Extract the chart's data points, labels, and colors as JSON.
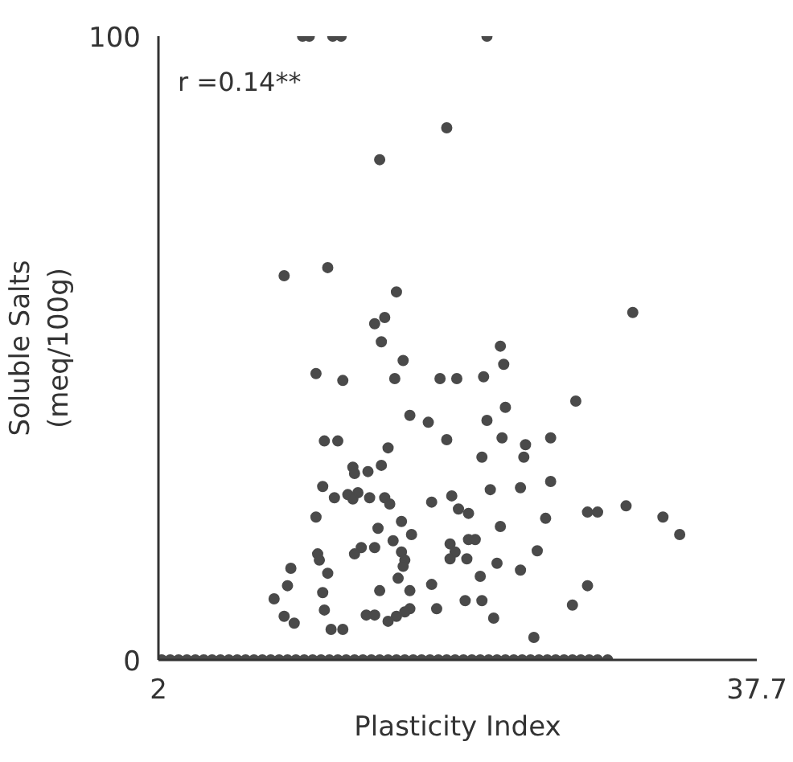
{
  "chart_data": {
    "type": "scatter",
    "xlabel": "Plasticity Index",
    "ylabel": "Soluble Salts\n(meq/100g)",
    "annotations": [
      "r =0.14**"
    ],
    "xlim": [
      2,
      37.7
    ],
    "ylim": [
      0,
      100
    ],
    "xticks": [
      2,
      37.7
    ],
    "yticks": [
      0,
      100
    ],
    "marker": "circle",
    "series": [
      {
        "color": "#4a4a4a",
        "x": [
          10.6,
          11.0,
          12.4,
          12.9,
          21.6,
          19.2,
          15.2,
          9.5,
          12.1,
          16.2,
          14.9,
          15.5,
          30.3,
          15.3,
          22.4,
          16.6,
          22.6,
          11.4,
          13.0,
          16.1,
          18.8,
          19.8,
          21.4,
          26.9,
          17.0,
          18.1,
          21.6,
          22.7,
          19.2,
          22.5,
          23.9,
          25.4,
          11.9,
          12.7,
          15.7,
          21.3,
          23.8,
          13.6,
          14.5,
          15.3,
          13.7,
          11.8,
          25.4,
          21.8,
          23.6,
          12.5,
          13.3,
          13.9,
          13.6,
          14.6,
          15.5,
          15.8,
          18.3,
          19.5,
          19.9,
          20.5,
          11.4,
          16.5,
          15.1,
          17.1,
          22.4,
          25.1,
          27.6,
          28.2,
          29.9,
          32.1,
          33.1,
          20.5,
          20.9,
          16.0,
          14.9,
          14.1,
          13.7,
          16.5,
          19.4,
          19.7,
          11.5,
          11.6,
          16.7,
          16.6,
          19.4,
          20.4,
          24.6,
          22.2,
          9.9,
          12.1,
          23.6,
          21.2,
          16.3,
          9.7,
          18.3,
          27.6,
          11.8,
          15.2,
          17.0,
          8.9,
          20.3,
          21.3,
          11.9,
          17.0,
          18.6,
          26.7,
          14.4,
          14.9,
          16.2,
          16.7,
          9.5,
          10.1,
          15.7,
          22.0,
          12.3,
          13.0,
          24.4,
          2.2,
          2.7,
          3.2,
          3.7,
          4.2,
          4.7,
          5.2,
          5.7,
          6.2,
          6.7,
          7.2,
          7.7,
          8.2,
          8.7,
          9.2,
          9.7,
          10.2,
          10.7,
          11.2,
          11.7,
          12.2,
          12.7,
          13.2,
          13.7,
          14.2,
          14.7,
          15.2,
          15.7,
          16.2,
          16.7,
          17.2,
          17.7,
          18.2,
          18.7,
          19.2,
          19.7,
          20.2,
          20.7,
          21.2,
          21.7,
          22.2,
          22.7,
          23.2,
          23.7,
          24.2,
          24.7,
          25.2,
          25.7,
          26.2,
          26.7,
          27.2,
          27.7,
          28.2,
          28.8
        ],
        "values": [
          100,
          100,
          100,
          100,
          100,
          85.3,
          80.2,
          61.6,
          62.9,
          59,
          53.9,
          54.9,
          55.7,
          51.0,
          50.3,
          48.0,
          47.4,
          45.9,
          44.8,
          45.1,
          45.1,
          45.1,
          45.4,
          41.5,
          39.2,
          38.1,
          38.4,
          40.5,
          35.3,
          35.6,
          34.5,
          35.6,
          35.1,
          35.1,
          34.0,
          32.5,
          32.5,
          30.9,
          30.2,
          31.2,
          29.9,
          27.8,
          28.6,
          27.3,
          27.6,
          26.0,
          26.5,
          26.8,
          25.8,
          26.0,
          26.0,
          25.0,
          25.3,
          26.3,
          24.2,
          23.5,
          22.9,
          22.2,
          21.1,
          20.1,
          21.4,
          22.7,
          23.7,
          23.7,
          24.7,
          22.9,
          20.1,
          19.3,
          19.3,
          19.1,
          18.0,
          18.0,
          17.0,
          17.3,
          18.6,
          17.3,
          17.0,
          16.0,
          16.0,
          15.0,
          16.2,
          16.2,
          17.5,
          15.5,
          14.7,
          13.9,
          14.4,
          13.4,
          13.1,
          11.9,
          12.1,
          11.9,
          10.8,
          11.1,
          11.1,
          9.8,
          9.5,
          9.5,
          8.0,
          8.2,
          8.2,
          8.8,
          7.2,
          7.2,
          7.0,
          7.7,
          7.0,
          5.9,
          6.2,
          6.7,
          4.9,
          4.9,
          3.6,
          0,
          0,
          0,
          0,
          0,
          0,
          0,
          0,
          0,
          0,
          0,
          0,
          0,
          0,
          0,
          0,
          0,
          0,
          0,
          0,
          0,
          0,
          0,
          0,
          0,
          0,
          0,
          0,
          0,
          0,
          0,
          0,
          0,
          0,
          0,
          0,
          0,
          0,
          0,
          0,
          0,
          0,
          0,
          0,
          0,
          0,
          0,
          0,
          0,
          0,
          0,
          0,
          0,
          0
        ]
      }
    ]
  }
}
